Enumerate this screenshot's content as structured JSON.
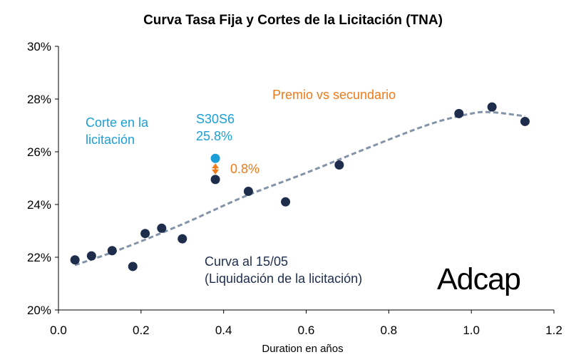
{
  "chart_data": {
    "type": "scatter",
    "title": "Curva Tasa Fija y Cortes de la Licitación (TNA)",
    "xlabel": "Duration en años",
    "ylabel": "",
    "xlim": [
      0.0,
      1.2
    ],
    "ylim": [
      20,
      30
    ],
    "x_ticks": [
      "0.0",
      "0.2",
      "0.4",
      "0.6",
      "0.8",
      "1.0",
      "1.2"
    ],
    "y_ticks": [
      "20%",
      "22%",
      "24%",
      "26%",
      "28%",
      "30%"
    ],
    "grid": false,
    "series": [
      {
        "color": "#1f2d4d",
        "points": [
          {
            "x": 0.04,
            "y": 21.9
          },
          {
            "x": 0.08,
            "y": 22.05
          },
          {
            "x": 0.13,
            "y": 22.25
          },
          {
            "x": 0.18,
            "y": 21.65
          },
          {
            "x": 0.21,
            "y": 22.9
          },
          {
            "x": 0.25,
            "y": 23.1
          },
          {
            "x": 0.3,
            "y": 22.7
          },
          {
            "x": 0.38,
            "y": 24.95
          },
          {
            "x": 0.46,
            "y": 24.5
          },
          {
            "x": 0.55,
            "y": 24.1
          },
          {
            "x": 0.68,
            "y": 25.5
          },
          {
            "x": 0.97,
            "y": 27.45
          },
          {
            "x": 1.05,
            "y": 27.7
          },
          {
            "x": 1.13,
            "y": 27.15
          }
        ]
      },
      {
        "color": "#1b9fd6",
        "points": [
          {
            "x": 0.38,
            "y": 25.75
          }
        ]
      },
      {
        "type": "trend",
        "style": "dashed",
        "color": "#8393a8",
        "points": [
          {
            "x": 0.04,
            "y": 21.7
          },
          {
            "x": 0.15,
            "y": 22.3
          },
          {
            "x": 0.3,
            "y": 23.25
          },
          {
            "x": 0.45,
            "y": 24.3
          },
          {
            "x": 0.6,
            "y": 25.2
          },
          {
            "x": 0.75,
            "y": 26.15
          },
          {
            "x": 0.9,
            "y": 27.05
          },
          {
            "x": 1.0,
            "y": 27.45
          },
          {
            "x": 1.05,
            "y": 27.5
          },
          {
            "x": 1.13,
            "y": 27.35
          }
        ]
      }
    ],
    "arrow": {
      "x": 0.38,
      "y_from": 25.75,
      "y_to": 24.95,
      "color": "#f07a19"
    },
    "annotations": {
      "corte_line1": "Corte en la",
      "corte_line2": "licitación",
      "bond_name": "S30S6",
      "bond_rate": "25.8%",
      "premio": "Premio vs secundario",
      "spread": "0.8%",
      "curva_line1": "Curva al 15/05",
      "curva_line2": "(Liquidación de la licitación)"
    },
    "logo": "Adcap"
  }
}
